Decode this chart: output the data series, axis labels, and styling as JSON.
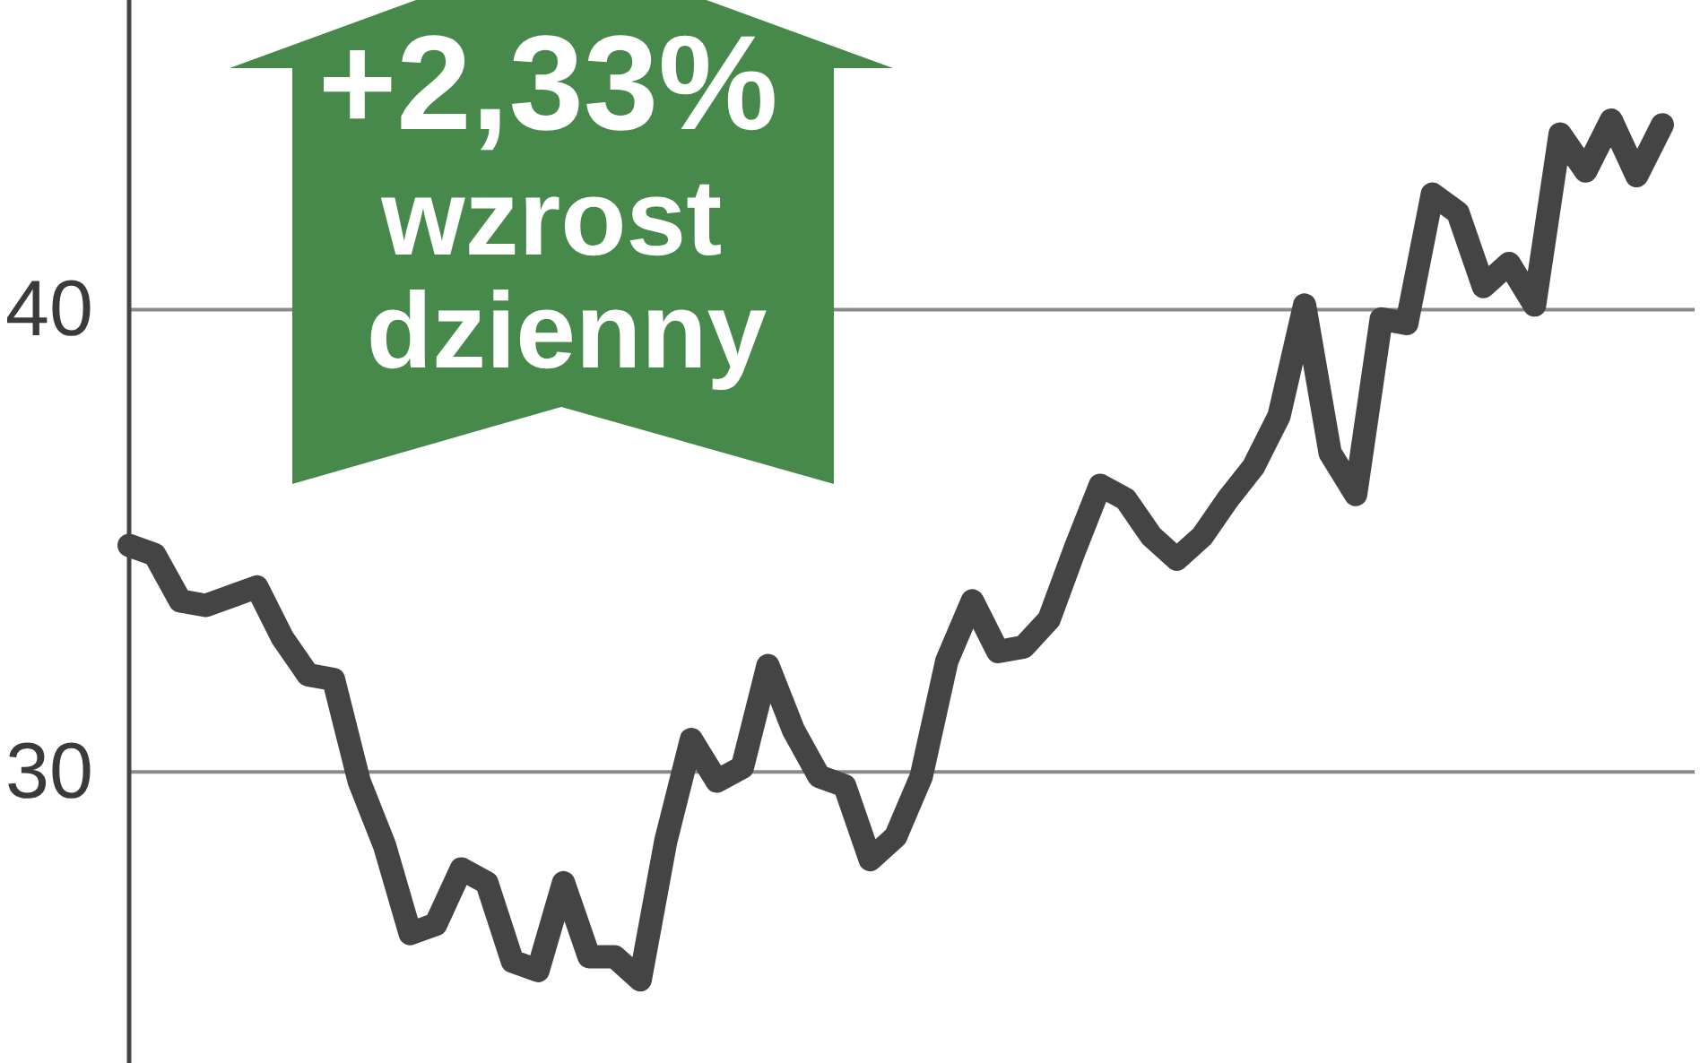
{
  "chart_data": {
    "type": "line",
    "categories": [
      null,
      null,
      null,
      null,
      null,
      null,
      null,
      null,
      null,
      null,
      null,
      null,
      null,
      null,
      null,
      null,
      null,
      null,
      null,
      null,
      null,
      null,
      null,
      null,
      null,
      null,
      null,
      null,
      null,
      null,
      null,
      null,
      null,
      null,
      null,
      null,
      null,
      null,
      null,
      null,
      null,
      null,
      null,
      null,
      null,
      null,
      null,
      null,
      null,
      null,
      null,
      null,
      null,
      null,
      null,
      null,
      null,
      null,
      null,
      null,
      null
    ],
    "series": [
      {
        "color": "#444444",
        "values": [
          34.9,
          34.7,
          33.7,
          33.6,
          33.8,
          34.0,
          32.9,
          32.1,
          32.0,
          29.8,
          28.4,
          26.5,
          26.7,
          27.9,
          27.6,
          25.9,
          25.7,
          27.6,
          26.0,
          26.0,
          25.5,
          28.5,
          30.7,
          29.8,
          30.1,
          32.3,
          30.9,
          29.9,
          29.7,
          28.1,
          28.6,
          29.9,
          32.4,
          33.7,
          32.6,
          32.7,
          33.3,
          34.8,
          36.2,
          35.9,
          35.1,
          34.6,
          35.1,
          35.9,
          36.6,
          37.7,
          40.1,
          36.9,
          36.0,
          39.8,
          39.7,
          42.5,
          42.1,
          40.5,
          41.0,
          40.1,
          43.8,
          43.0,
          44.1,
          42.9,
          44.0
        ]
      }
    ],
    "ylim": [
      23.7,
      46.7
    ],
    "yticks": [
      30,
      40
    ],
    "grid": "y",
    "annotations": [
      "+2,33% wzrost dzienny"
    ]
  }
}
